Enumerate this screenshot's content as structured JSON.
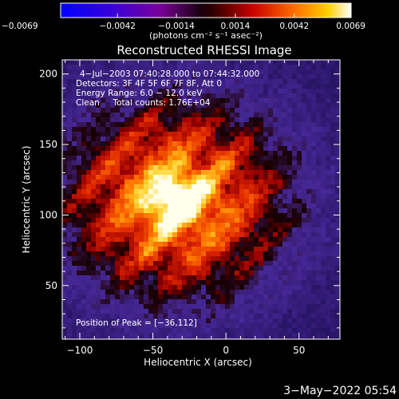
{
  "chart_data": {
    "type": "heatmap",
    "title": "Reconstructed RHESSI Image",
    "xlabel": "Heliocentric X (arcsec)",
    "ylabel": "Heliocentric Y (arcsec)",
    "xlim": [
      -112,
      78
    ],
    "ylim": [
      12,
      210
    ],
    "xticks": [
      -100,
      -50,
      0,
      50
    ],
    "xtick_labels": [
      "−100",
      "−50",
      "0",
      "50"
    ],
    "yticks": [
      50,
      100,
      150,
      200
    ],
    "ytick_labels": [
      "50",
      "100",
      "150",
      "200"
    ],
    "colorbar": {
      "range": [
        -0.0069,
        0.0069
      ],
      "ticks": [
        -0.0069,
        -0.0042,
        -0.0014,
        0.0014,
        0.0042,
        0.0069
      ],
      "tick_labels": [
        "−0.0069",
        "−0.0042",
        "−0.0014",
        "0.0014",
        "0.0042",
        "0.0069"
      ],
      "unit_label": "(photons cm⁻² s⁻¹ asec⁻²)"
    },
    "annotations": {
      "time": "4−Jul−2003 07:40:28.000 to 07:44:32.000",
      "detectors": "Detectors: 3F 4F 5F 6F 7F 8F, Att 0",
      "energy": "Energy Range: 6.0 − 12.0 keV",
      "clean": "Clean     Total counts: 1.76E+04",
      "peak": "Position of Peak = [−36,112]"
    },
    "peak_position": [
      -36,
      112
    ],
    "grid": false,
    "legend": "none"
  },
  "footer": {
    "timestamp": "3−May−2022 05:54"
  }
}
